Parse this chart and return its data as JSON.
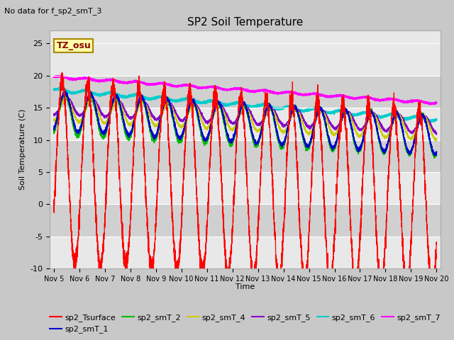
{
  "title": "SP2 Soil Temperature",
  "subtitle": "No data for f_sp2_smT_3",
  "ylabel": "Soil Temperature (C)",
  "xlabel": "Time",
  "annotation": "TZ_osu",
  "xlim_days": [
    4.85,
    20.15
  ],
  "ylim": [
    -10,
    27
  ],
  "yticks": [
    -10,
    -5,
    0,
    5,
    10,
    15,
    20,
    25
  ],
  "xtick_labels": [
    "Nov 5",
    "Nov 6",
    "Nov 7",
    "Nov 8",
    "Nov 9",
    "Nov 10",
    "Nov 11",
    "Nov 12",
    "Nov 13",
    "Nov 14",
    "Nov 15",
    "Nov 16",
    "Nov 17",
    "Nov 18",
    "Nov 19",
    "Nov 20"
  ],
  "xtick_positions": [
    5,
    6,
    7,
    8,
    9,
    10,
    11,
    12,
    13,
    14,
    15,
    16,
    17,
    18,
    19,
    20
  ],
  "fig_bg": "#c8c8c8",
  "plot_bg_light": "#e8e8e8",
  "plot_bg_dark": "#d0d0d0",
  "series_colors": {
    "sp2_Tsurface": "#ff0000",
    "sp2_smT_1": "#0000cc",
    "sp2_smT_2": "#00bb00",
    "sp2_smT_4": "#cccc00",
    "sp2_smT_5": "#8800cc",
    "sp2_smT_6": "#00cccc",
    "sp2_smT_7": "#ff00ff"
  },
  "figsize": [
    6.4,
    4.8
  ],
  "dpi": 100
}
